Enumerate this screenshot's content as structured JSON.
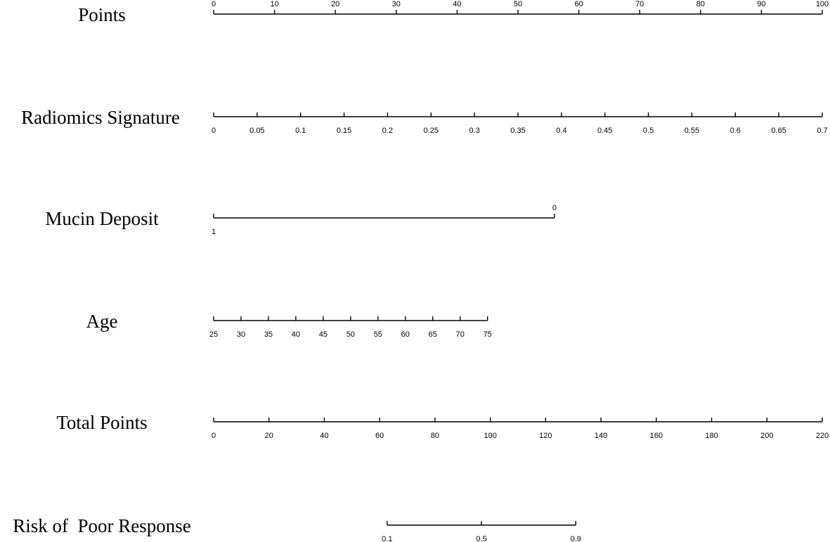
{
  "chart_data": {
    "type": "nomogram",
    "rows": [
      {
        "label": "Points",
        "xlim": [
          0,
          100
        ],
        "points": [
          0,
          100
        ],
        "ticks": [
          0,
          10,
          20,
          30,
          40,
          50,
          60,
          70,
          80,
          90,
          100
        ]
      },
      {
        "label": "Radiomics Signature",
        "xlim": [
          0,
          0.7
        ],
        "points": [
          0,
          100
        ],
        "ticks": [
          0,
          0.05,
          0.1,
          0.15,
          0.2,
          0.25,
          0.3,
          0.35,
          0.4,
          0.45,
          0.5,
          0.55,
          0.6,
          0.65,
          0.7
        ]
      },
      {
        "label": "Mucin Deposit",
        "xlim": [
          1,
          0
        ],
        "points": [
          0,
          56
        ],
        "ticks": [
          1,
          0
        ]
      },
      {
        "label": "Age",
        "xlim": [
          25,
          75
        ],
        "points": [
          0,
          45
        ],
        "ticks": [
          25,
          30,
          35,
          40,
          45,
          50,
          55,
          60,
          65,
          70,
          75
        ]
      },
      {
        "label": "Total Points",
        "xlim": [
          0,
          220
        ],
        "points": [
          0,
          100
        ],
        "ticks": [
          0,
          20,
          40,
          60,
          80,
          100,
          120,
          140,
          160,
          180,
          200,
          220
        ]
      },
      {
        "label": "Risk of  Poor Response",
        "xlim": [
          0.1,
          0.9
        ],
        "points": [
          28.5,
          59.5
        ],
        "scale": "logit",
        "ticks": [
          0.1,
          0.5,
          0.9
        ]
      }
    ]
  }
}
